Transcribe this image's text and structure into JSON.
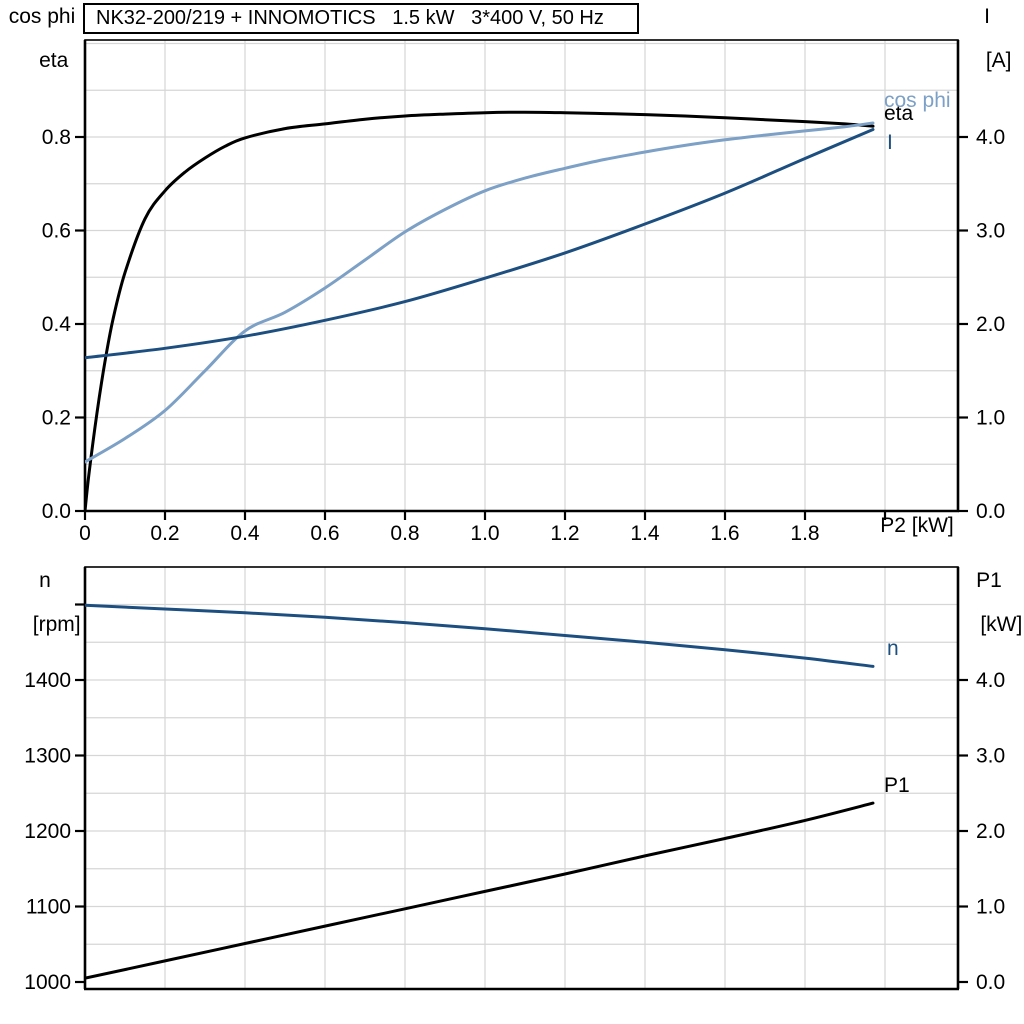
{
  "page": {
    "background": "#ffffff"
  },
  "colors": {
    "black": "#000000",
    "dark_blue": "#1c4f80",
    "light_blue": "#7ca0c6",
    "grid": "#d6d6d6",
    "frame": "#000000"
  },
  "chart_data": [
    {
      "type": "line",
      "title": "NK32-200/219 + INNOMOTICS   1.5 kW   3*400 V, 50 Hz",
      "xlabel": "P2 [kW]",
      "ylabel_left_lines": [
        "cos phi",
        "eta"
      ],
      "ylabel_right_lines": [
        "I",
        "[A]"
      ],
      "xlim": [
        0,
        2.18
      ],
      "ylim_left": [
        0,
        1.01
      ],
      "ylim_right": [
        0,
        5.04
      ],
      "grid": "on",
      "legend_position": "end-of-curve",
      "x_ticks": [
        {
          "v": 0,
          "label": "0"
        },
        {
          "v": 0.2,
          "label": "0.2"
        },
        {
          "v": 0.4,
          "label": "0.4"
        },
        {
          "v": 0.6,
          "label": "0.6"
        },
        {
          "v": 0.8,
          "label": "0.8"
        },
        {
          "v": 1.0,
          "label": "1.0"
        },
        {
          "v": 1.2,
          "label": "1.2"
        },
        {
          "v": 1.4,
          "label": "1.4"
        },
        {
          "v": 1.6,
          "label": "1.6"
        },
        {
          "v": 1.8,
          "label": "1.8"
        },
        {
          "v": 2.0,
          "label": ""
        }
      ],
      "left_ticks": [
        {
          "v": 0,
          "label": "0.0"
        },
        {
          "v": 0.2,
          "label": "0.2"
        },
        {
          "v": 0.4,
          "label": "0.4"
        },
        {
          "v": 0.6,
          "label": "0.6"
        },
        {
          "v": 0.8,
          "label": "0.8"
        }
      ],
      "right_ticks": [
        {
          "v": 0,
          "label": "0.0"
        },
        {
          "v": 1,
          "label": "1.0"
        },
        {
          "v": 2,
          "label": "2.0"
        },
        {
          "v": 3,
          "label": "3.0"
        },
        {
          "v": 4,
          "label": "4.0"
        }
      ],
      "xgrid": [
        0.2,
        0.4,
        0.6,
        0.8,
        1.0,
        1.2,
        1.4,
        1.6,
        1.8,
        2.0
      ],
      "ygrid": [
        0.1,
        0.2,
        0.3,
        0.4,
        0.5,
        0.6,
        0.7,
        0.8,
        0.9,
        1.0
      ],
      "series": [
        {
          "name": "eta",
          "label": "eta",
          "axis": "left",
          "color": "black",
          "width": 3,
          "x": [
            0,
            0.01,
            0.03,
            0.05,
            0.07,
            0.1,
            0.15,
            0.2,
            0.25,
            0.3,
            0.35,
            0.4,
            0.5,
            0.6,
            0.7,
            0.8,
            0.9,
            1.0,
            1.1,
            1.2,
            1.3,
            1.4,
            1.5,
            1.6,
            1.7,
            1.8,
            1.9,
            1.97
          ],
          "y": [
            0,
            0.08,
            0.21,
            0.32,
            0.41,
            0.51,
            0.625,
            0.685,
            0.725,
            0.755,
            0.78,
            0.798,
            0.818,
            0.828,
            0.838,
            0.845,
            0.849,
            0.852,
            0.853,
            0.852,
            0.85,
            0.848,
            0.845,
            0.841,
            0.837,
            0.833,
            0.828,
            0.823
          ]
        },
        {
          "name": "cos phi",
          "label": "cos phi",
          "axis": "left",
          "color": "light_blue",
          "width": 3,
          "x": [
            0,
            0.1,
            0.2,
            0.3,
            0.4,
            0.5,
            0.6,
            0.7,
            0.8,
            0.9,
            1.0,
            1.1,
            1.2,
            1.3,
            1.4,
            1.5,
            1.6,
            1.7,
            1.8,
            1.9,
            1.97
          ],
          "y": [
            0.105,
            0.155,
            0.215,
            0.3,
            0.385,
            0.425,
            0.477,
            0.537,
            0.597,
            0.645,
            0.685,
            0.712,
            0.733,
            0.752,
            0.768,
            0.782,
            0.794,
            0.804,
            0.813,
            0.822,
            0.83
          ]
        },
        {
          "name": "I",
          "label": "I",
          "axis": "right",
          "color": "dark_blue",
          "width": 3,
          "x": [
            0,
            0.2,
            0.4,
            0.6,
            0.8,
            1.0,
            1.2,
            1.4,
            1.6,
            1.8,
            1.97
          ],
          "y": [
            1.64,
            1.74,
            1.87,
            2.04,
            2.24,
            2.49,
            2.76,
            3.07,
            3.4,
            3.77,
            4.08
          ]
        }
      ]
    },
    {
      "type": "line",
      "title": "",
      "xlabel": "",
      "ylabel_left_lines": [
        "n",
        "[rpm]"
      ],
      "ylabel_right_lines": [
        "P1",
        "[kW]"
      ],
      "xlim": [
        0,
        2.18
      ],
      "ylim_left": [
        990,
        1550
      ],
      "ylim_right": [
        0,
        5.5
      ],
      "grid": "on",
      "legend_position": "end-of-curve",
      "x_ticks": [],
      "left_ticks": [
        {
          "v": 1000,
          "label": "1000"
        },
        {
          "v": 1100,
          "label": "1100"
        },
        {
          "v": 1200,
          "label": "1200"
        },
        {
          "v": 1300,
          "label": "1300"
        },
        {
          "v": 1400,
          "label": "1400"
        },
        {
          "v": 1500,
          "label": ""
        }
      ],
      "right_ticks": [
        {
          "v": 0,
          "label": "0.0"
        },
        {
          "v": 1,
          "label": "1.0"
        },
        {
          "v": 2,
          "label": "2.0"
        },
        {
          "v": 3,
          "label": "3.0"
        },
        {
          "v": 4,
          "label": "4.0"
        }
      ],
      "xgrid": [
        0.2,
        0.4,
        0.6,
        0.8,
        1.0,
        1.2,
        1.4,
        1.6,
        1.8,
        2.0
      ],
      "ygrid": [
        1050,
        1100,
        1150,
        1200,
        1250,
        1300,
        1350,
        1400,
        1450,
        1500
      ],
      "series": [
        {
          "name": "n",
          "label": "n",
          "axis": "left",
          "color": "dark_blue",
          "width": 3,
          "x": [
            0,
            0.2,
            0.4,
            0.6,
            0.8,
            1.0,
            1.2,
            1.4,
            1.6,
            1.8,
            1.97
          ],
          "y": [
            1499,
            1494,
            1489,
            1483,
            1476,
            1468,
            1459,
            1450,
            1440,
            1429,
            1418
          ]
        },
        {
          "name": "P1",
          "label": "P1",
          "axis": "right",
          "color": "black",
          "width": 3,
          "x": [
            0,
            0.2,
            0.4,
            0.6,
            0.8,
            1.0,
            1.2,
            1.4,
            1.6,
            1.8,
            1.97
          ],
          "y": [
            0.05,
            0.28,
            0.51,
            0.74,
            0.97,
            1.2,
            1.43,
            1.67,
            1.9,
            2.14,
            2.37
          ]
        }
      ]
    }
  ]
}
